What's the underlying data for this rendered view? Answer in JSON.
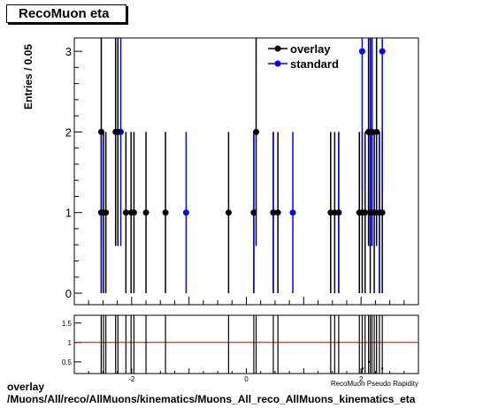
{
  "title": "RecoMuon eta",
  "footer": {
    "line1": "overlay",
    "line2": "/Muons/All/reco/AllMuons/kinematics/Muons_All_reco_AllMuons_kinematics_eta"
  },
  "chart_data": {
    "type": "scatter",
    "ylabel": "Entries / 0.05",
    "xlabel": "RecoMuon Pseudo Rapidity",
    "xlim": [
      -3,
      3
    ],
    "ylim": [
      0,
      3.2
    ],
    "yticks": [
      "0",
      "1",
      "2",
      "3"
    ],
    "xticks": [
      "-2",
      "0",
      "2"
    ],
    "legend": {
      "position": "top-right",
      "entries": [
        "overlay",
        "standard"
      ]
    },
    "series": [
      {
        "name": "overlay",
        "color": "#000000",
        "points": [
          {
            "x": -2.53,
            "y": 2
          },
          {
            "x": -2.53,
            "y": 1
          },
          {
            "x": -2.49,
            "y": 1
          },
          {
            "x": -2.45,
            "y": 1
          },
          {
            "x": -2.28,
            "y": 2
          },
          {
            "x": -2.24,
            "y": 2
          },
          {
            "x": -2.1,
            "y": 1
          },
          {
            "x": -2.01,
            "y": 1
          },
          {
            "x": -1.96,
            "y": 1
          },
          {
            "x": -1.75,
            "y": 1
          },
          {
            "x": -1.41,
            "y": 1
          },
          {
            "x": -0.31,
            "y": 1
          },
          {
            "x": 0.13,
            "y": 1
          },
          {
            "x": 0.17,
            "y": 2
          },
          {
            "x": 0.47,
            "y": 1
          },
          {
            "x": 0.55,
            "y": 1
          },
          {
            "x": 1.47,
            "y": 1
          },
          {
            "x": 1.54,
            "y": 1
          },
          {
            "x": 1.61,
            "y": 1
          },
          {
            "x": 1.97,
            "y": 1
          },
          {
            "x": 2.02,
            "y": 1
          },
          {
            "x": 2.07,
            "y": 1
          },
          {
            "x": 2.13,
            "y": 2
          },
          {
            "x": 2.16,
            "y": 1
          },
          {
            "x": 2.19,
            "y": 2
          },
          {
            "x": 2.23,
            "y": 1
          },
          {
            "x": 2.27,
            "y": 2
          },
          {
            "x": 2.32,
            "y": 1
          },
          {
            "x": 2.37,
            "y": 1
          }
        ]
      },
      {
        "name": "standard",
        "color": "#0000ff",
        "points": [
          {
            "x": -2.53,
            "y": 1
          },
          {
            "x": -2.19,
            "y": 2
          },
          {
            "x": -1.05,
            "y": 1
          },
          {
            "x": 0.13,
            "y": 1
          },
          {
            "x": 0.47,
            "y": 1
          },
          {
            "x": 0.81,
            "y": 1
          },
          {
            "x": 1.61,
            "y": 1
          },
          {
            "x": 2.02,
            "y": 3
          },
          {
            "x": 2.16,
            "y": 2
          },
          {
            "x": 2.19,
            "y": 2
          },
          {
            "x": 2.37,
            "y": 3
          },
          {
            "x": 2.32,
            "y": 1
          }
        ]
      }
    ],
    "ratio": {
      "ylim": [
        0.2,
        1.7
      ],
      "yticks": [
        "0.5",
        "1",
        "1.5"
      ],
      "reference": 1,
      "reference_color": "#cc0000",
      "points": [
        {
          "x": 2.03,
          "y": 0.33
        },
        {
          "x": 2.15,
          "y": 0.5
        },
        {
          "x": 2.37,
          "y": 0.33
        }
      ]
    }
  }
}
